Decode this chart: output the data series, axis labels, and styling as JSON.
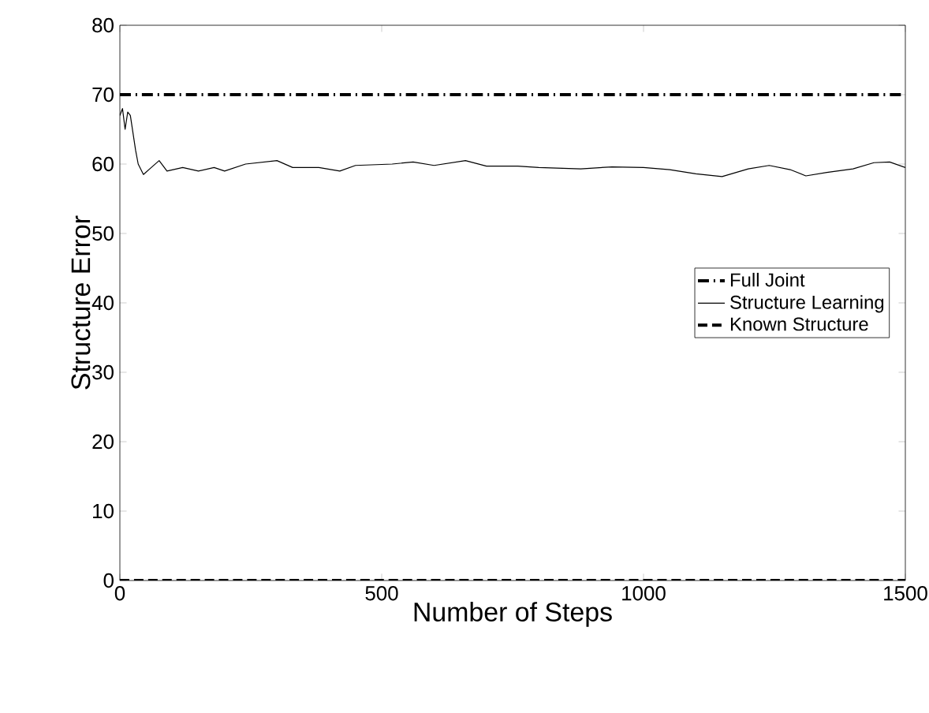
{
  "chart_data": {
    "type": "line",
    "xlabel": "Number of Steps",
    "ylabel": "Structure Error",
    "xlim": [
      0,
      1500
    ],
    "ylim": [
      0,
      80
    ],
    "xticks": [
      0,
      500,
      1000,
      1500
    ],
    "yticks": [
      0,
      10,
      20,
      30,
      40,
      50,
      60,
      70,
      80
    ],
    "legend": "right",
    "grid": false,
    "marker": "none",
    "series": [
      {
        "name": "Full Joint",
        "color": "#000000",
        "line_style": "dashdot",
        "x": [
          0,
          1500
        ],
        "values": [
          70,
          70
        ]
      },
      {
        "name": "Structure Learning",
        "color": "#000000",
        "line_style": "solid",
        "x": [
          0,
          5,
          10,
          15,
          20,
          30,
          35,
          45,
          60,
          75,
          90,
          120,
          150,
          180,
          200,
          240,
          300,
          330,
          380,
          420,
          450,
          520,
          560,
          600,
          660,
          700,
          760,
          800,
          880,
          940,
          1000,
          1050,
          1100,
          1150,
          1200,
          1240,
          1280,
          1310,
          1350,
          1400,
          1440,
          1470,
          1500
        ],
        "values": [
          67,
          68,
          65,
          67.5,
          67,
          62,
          60,
          58.5,
          59.5,
          60.5,
          59,
          59.5,
          59,
          59.5,
          59,
          60,
          60.5,
          59.5,
          59.5,
          59,
          59.8,
          60,
          60.3,
          59.8,
          60.5,
          59.7,
          59.7,
          59.5,
          59.3,
          59.6,
          59.5,
          59.2,
          58.6,
          58.2,
          59.3,
          59.8,
          59.2,
          58.3,
          58.8,
          59.3,
          60.2,
          60.3,
          59.5
        ]
      },
      {
        "name": "Known Structure",
        "color": "#000000",
        "line_style": "dashed",
        "x": [
          0,
          1500
        ],
        "values": [
          0,
          0
        ]
      }
    ]
  }
}
